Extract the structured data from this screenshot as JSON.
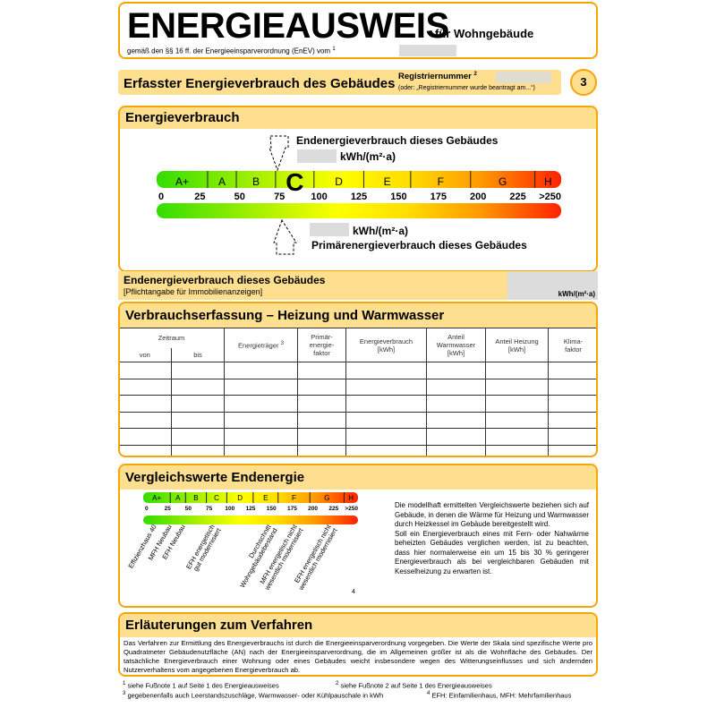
{
  "header": {
    "title": "ENERGIEAUSWEIS",
    "subtitle": "für Wohngebäude",
    "legal": "gemäß den §§ 16 ff. der Energieeinsparverordnung (EnEV) vom",
    "legal_fn": "1"
  },
  "section_bar": {
    "title": "Erfasster Energieverbrauch des Gebäudes",
    "reg_label": "Registriernummer",
    "reg_fn": "2",
    "reg_note": "(oder: „Registriernummer wurde beantragt am...“)",
    "page_number": "3"
  },
  "energy": {
    "title": "Energieverbrauch",
    "end_label": "Endenergieverbrauch dieses Gebäudes",
    "unit": "kWh/(m²·a)",
    "primary_label": "Primärenergieverbrauch dieses Gebäudes",
    "classes": [
      "A+",
      "A",
      "B",
      "C",
      "D",
      "E",
      "F",
      "G",
      "H"
    ],
    "highlighted_class": "C",
    "ticks": [
      "0",
      "25",
      "50",
      "75",
      "100",
      "125",
      "150",
      "175",
      "200",
      "225",
      ">250"
    ]
  },
  "end_strip": {
    "title": "Endenergieverbrauch dieses Gebäudes",
    "note": "[Pflichtangabe für Immobilienanzeigen]",
    "unit": "kWh/(m²·a)"
  },
  "consumption": {
    "title": "Verbrauchserfassung – Heizung und Warmwasser",
    "zeitraum": "Zeitraum",
    "von": "von",
    "bis": "bis",
    "columns": [
      "Energieträger",
      "Primär-\nenergie-\nfaktor",
      "Energieverbrauch\n[kWh]",
      "Anteil\nWarmwasser\n[kWh]",
      "Anteil Heizung\n[kWh]",
      "Klima-\nfaktor"
    ],
    "energietraeger_fn": "3",
    "rows": 6
  },
  "comparison": {
    "title": "Vergleichswerte Endenergie",
    "labels": [
      "Effizienzhaus 40",
      "MFH Neubau",
      "EFH Neubau",
      "EFH energetisch\ngut modernisiert",
      "Durchschnitt\nWohngebäudebestand",
      "MFH energetisch nicht\nwesentlich modernisiert",
      "EFH energetisch nicht\nwesentlich modernisiert"
    ],
    "footnote_mark": "4",
    "text": "Die modellhaft ermittelten Vergleichswerte beziehen sich auf Gebäude, in denen die Wärme für Heizung und Warmwasser durch Heizkessel im Gebäude bereitgestellt wird.",
    "text2": "Soll ein Energieverbrauch eines mit Fern- oder Nahwärme beheizten Gebäudes verglichen werden, ist zu beachten, dass hier normalerweise ein um 15 bis 30 % geringerer Energieverbrauch als bei vergleichbaren Gebäuden mit Kesselheizung zu erwarten ist."
  },
  "explain": {
    "title": "Erläuterungen zum Verfahren",
    "text": "Das Verfahren zur Ermittlung des Energieverbrauchs ist durch die Energieeinsparverordnung vorgegeben. Die Werte der Skala sind spezifische Werte pro Quadratmeter Gebäudenutzfläche (AN) nach der Energieeinsparverordnung, die im Allgemeinen größer ist als die Wohnfläche des Gebäudes. Der tatsächliche Energieverbrauch einer Wohnung oder eines Gebäudes weicht insbesondere wegen des Witterungseinflusses und sich ändernden Nutzerverhaltens vom angegebenen Energieverbrauch ab."
  },
  "footnotes": [
    {
      "n": "1",
      "t": "siehe Fußnote 1 auf Seite 1 des Energieausweises"
    },
    {
      "n": "2",
      "t": "siehe Fußnote 2 auf Seite 1 des Energieausweises"
    },
    {
      "n": "3",
      "t": "gegebenenfalls auch Leerstandszuschläge, Warmwasser- oder Kühlpauschale in kWh"
    },
    {
      "n": "4",
      "t": "EFH: Einfamilienhaus, MFH: Mehrfamilienhaus"
    }
  ],
  "colors": {
    "border": "#f7a500",
    "header_fill": "#fedf8f",
    "green": "#33dd00",
    "yellow": "#ffff00",
    "red": "#ff2200"
  }
}
